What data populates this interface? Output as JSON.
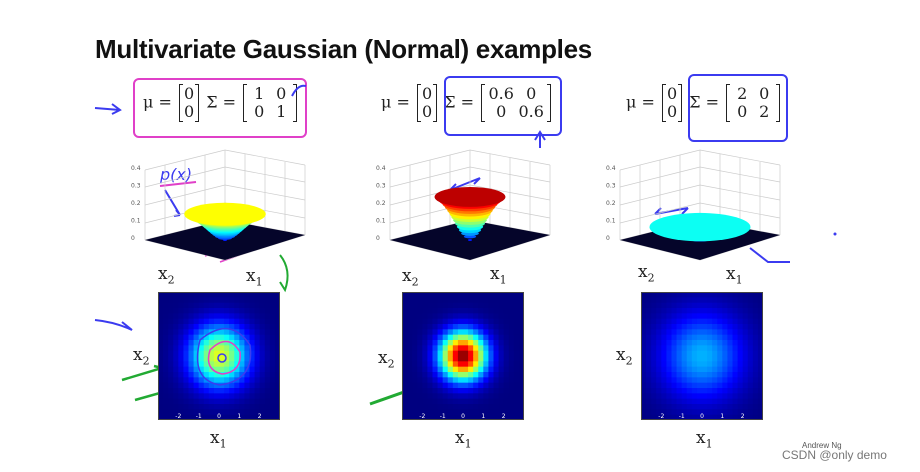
{
  "title": "Multivariate Gaussian (Normal) examples",
  "examples": [
    {
      "mu": [
        "0",
        "0"
      ],
      "sigma": [
        [
          "1",
          "0"
        ],
        [
          "0",
          "1"
        ]
      ],
      "annotation_color": "#e040c8",
      "sigma_sq": 1.0
    },
    {
      "mu": [
        "0",
        "0"
      ],
      "sigma": [
        [
          "0.6",
          "0"
        ],
        [
          "0",
          "0.6"
        ]
      ],
      "annotation_color": "#3b3bf0",
      "sigma_sq": 0.6
    },
    {
      "mu": [
        "0",
        "0"
      ],
      "sigma": [
        [
          "2",
          "0"
        ],
        [
          "0",
          "2"
        ]
      ],
      "annotation_color": "#3b3bf0",
      "sigma_sq": 2.0
    }
  ],
  "labels": {
    "mu_symbol": "μ =",
    "sigma_symbol": "Σ =",
    "x1": "x",
    "x2": "x",
    "sub1": "1",
    "sub2": "2",
    "handwriting_px": "p(x)"
  },
  "surface_ticks": [
    "0.4",
    "0.3",
    "0.2",
    "0.1",
    "0"
  ],
  "heatmap_ticks": [
    "-2",
    "-1",
    "0",
    "1",
    "2"
  ],
  "footer": {
    "author": "Andrew Ng",
    "watermark": "CSDN @only demo"
  }
}
